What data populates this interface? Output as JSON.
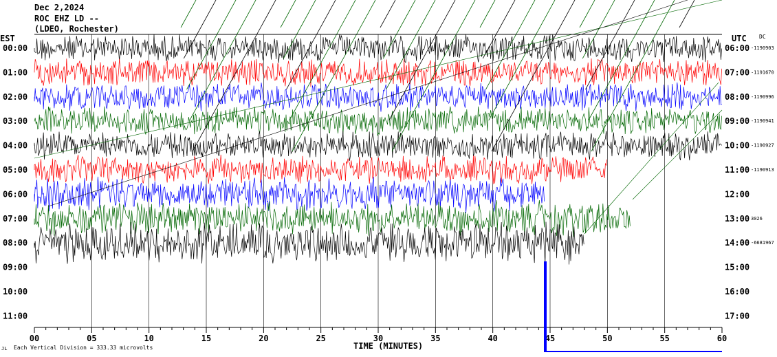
{
  "header": {
    "date": "Dec 2,2024",
    "station": "ROC EHZ LD --",
    "network": "(LDEO, Rochester)"
  },
  "left_zone": "EST",
  "right_zone": "UTC",
  "dc_label": "DC",
  "x_axis_label": "TIME (MINUTES)",
  "scale_note": "Each Vertical Division =  333.33 microvolts",
  "chart_data": {
    "type": "line",
    "title": "Dec 2,2024",
    "xlabel": "TIME (MINUTES)",
    "xlim": [
      0,
      60
    ],
    "x_ticks": [
      "00",
      "05",
      "10",
      "15",
      "20",
      "25",
      "30",
      "35",
      "40",
      "45",
      "50",
      "55",
      "60"
    ],
    "rows": [
      {
        "est": "00:00",
        "utc": "06:00",
        "dc": "-1190903",
        "color": "#000000",
        "end_min": 60
      },
      {
        "est": "01:00",
        "utc": "07:00",
        "dc": "-1191670",
        "color": "#ff0000",
        "end_min": 60
      },
      {
        "est": "02:00",
        "utc": "08:00",
        "dc": "-1190996",
        "color": "#0000ff",
        "end_min": 60
      },
      {
        "est": "03:00",
        "utc": "09:00",
        "dc": "-1190941",
        "color": "#006600",
        "end_min": 60
      },
      {
        "est": "04:00",
        "utc": "10:00",
        "dc": "-1190927",
        "color": "#000000",
        "end_min": 60
      },
      {
        "est": "05:00",
        "utc": "11:00",
        "dc": "-1190913",
        "color": "#ff0000",
        "end_min": 50
      },
      {
        "est": "06:00",
        "utc": "12:00",
        "dc": "",
        "color": "#0000ff",
        "end_min": 44.5
      },
      {
        "est": "07:00",
        "utc": "13:00",
        "dc": "3026",
        "color": "#006600",
        "end_min": 52
      },
      {
        "est": "08:00",
        "utc": "14:00",
        "dc": "-6681967",
        "color": "#000000",
        "end_min": 48
      },
      {
        "est": "09:00",
        "utc": "15:00",
        "dc": "",
        "color": "#000000",
        "end_min": 0
      },
      {
        "est": "10:00",
        "utc": "16:00",
        "dc": "",
        "color": "#000000",
        "end_min": 0
      },
      {
        "est": "11:00",
        "utc": "17:00",
        "dc": "",
        "color": "#000000",
        "end_min": 0
      }
    ]
  }
}
